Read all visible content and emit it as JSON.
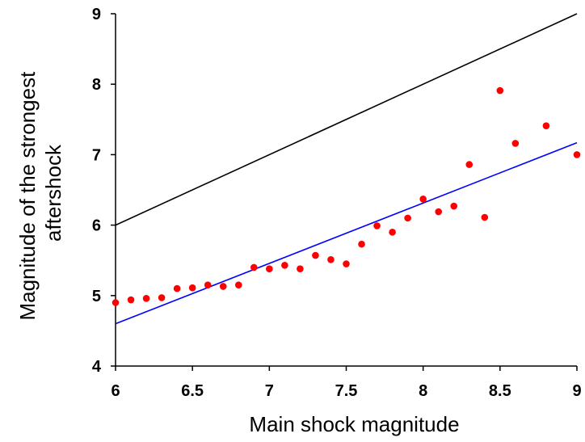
{
  "chart_data": {
    "type": "scatter",
    "title": "",
    "xlabel": "Main shock magnitude",
    "ylabel_lines": [
      "Magnitude of the strongest",
      "aftershock"
    ],
    "xlim": [
      6,
      9
    ],
    "ylim": [
      4,
      9
    ],
    "x_ticks": [
      "6",
      "6.5",
      "7",
      "7.5",
      "8",
      "8.5",
      "9"
    ],
    "y_ticks": [
      "4",
      "5",
      "6",
      "7",
      "8",
      "9"
    ],
    "grid": false,
    "legend": "none",
    "series": [
      {
        "kind": "scatter",
        "color": "#ff0000",
        "points": [
          [
            6.0,
            4.9
          ],
          [
            6.1,
            4.94
          ],
          [
            6.2,
            4.96
          ],
          [
            6.3,
            4.97
          ],
          [
            6.4,
            5.1
          ],
          [
            6.5,
            5.11
          ],
          [
            6.6,
            5.15
          ],
          [
            6.7,
            5.13
          ],
          [
            6.8,
            5.15
          ],
          [
            6.9,
            5.4
          ],
          [
            7.0,
            5.38
          ],
          [
            7.1,
            5.43
          ],
          [
            7.2,
            5.38
          ],
          [
            7.3,
            5.57
          ],
          [
            7.4,
            5.51
          ],
          [
            7.5,
            5.45
          ],
          [
            7.6,
            5.73
          ],
          [
            7.7,
            5.99
          ],
          [
            7.8,
            5.9
          ],
          [
            7.9,
            6.1
          ],
          [
            8.0,
            6.37
          ],
          [
            8.1,
            6.19
          ],
          [
            8.2,
            6.27
          ],
          [
            8.3,
            6.86
          ],
          [
            8.4,
            6.11
          ],
          [
            8.5,
            7.91
          ],
          [
            8.6,
            7.16
          ],
          [
            8.8,
            7.41
          ],
          [
            9.0,
            7.0
          ]
        ]
      },
      {
        "kind": "line",
        "color": "#000000",
        "points": [
          [
            6,
            6
          ],
          [
            9,
            9
          ]
        ]
      },
      {
        "kind": "line",
        "color": "#0000ff",
        "points": [
          [
            6,
            4.6
          ],
          [
            9,
            7.17
          ]
        ]
      }
    ]
  }
}
